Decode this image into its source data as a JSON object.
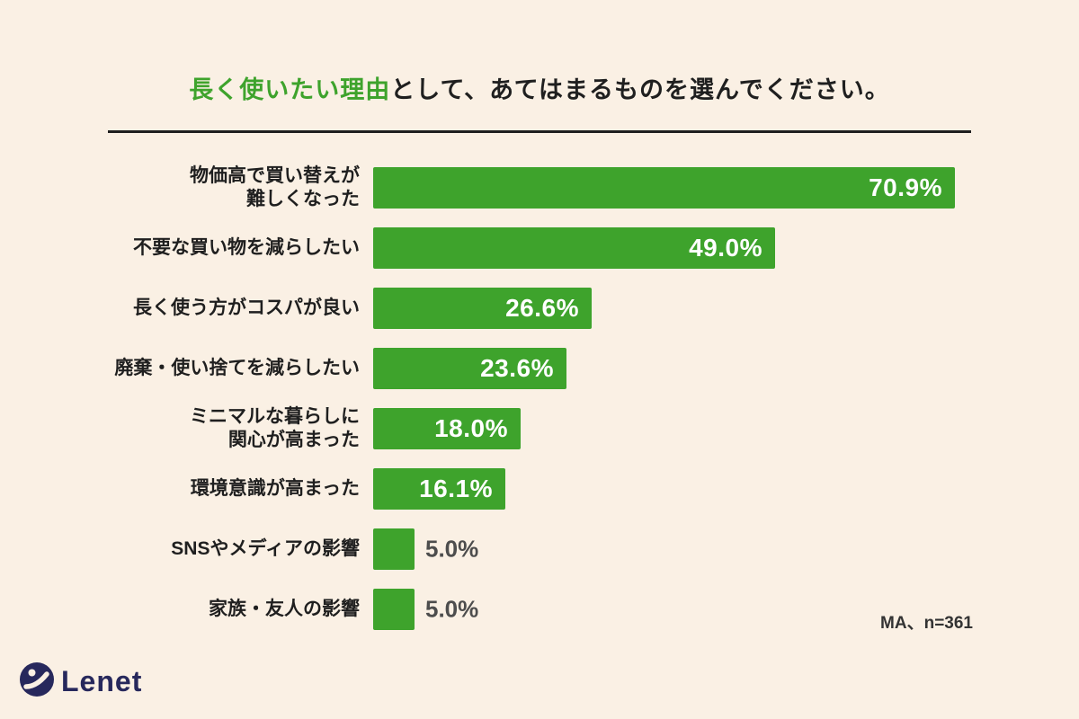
{
  "title": {
    "highlight": "長く使いたい理由",
    "rest": "として、あてはまるものを選んでください。"
  },
  "note": "MA、n=361",
  "logo": {
    "brand": "Lenet",
    "icon": "lenet-circle-mark"
  },
  "colors": {
    "background": "#faf0e4",
    "bar": "#3ea32c",
    "title_highlight": "#3ea32c",
    "text": "#1f1f1f",
    "value_inside": "#ffffff",
    "value_outside": "#4d4d4d",
    "logo": "#27285c"
  },
  "chart_data": {
    "type": "bar",
    "orientation": "horizontal",
    "title": "長く使いたい理由として、あてはまるものを選んでください。",
    "categories": [
      "物価高で買い替えが\n難しくなった",
      "不要な買い物を減らしたい",
      "長く使う方がコスパが良い",
      "廃棄・使い捨てを減らしたい",
      "ミニマルな暮らしに\n関心が高まった",
      "環境意識が高まった",
      "SNSやメディアの影響",
      "家族・友人の影響"
    ],
    "values": [
      70.9,
      49.0,
      26.6,
      23.6,
      18.0,
      16.1,
      5.0,
      5.0
    ],
    "value_labels": [
      "70.9%",
      "49.0%",
      "26.6%",
      "23.6%",
      "18.0%",
      "16.1%",
      "5.0%",
      "5.0%"
    ],
    "xlim": [
      0,
      71.8
    ],
    "grid": false,
    "legend": false,
    "annotation": "MA、n=361"
  }
}
